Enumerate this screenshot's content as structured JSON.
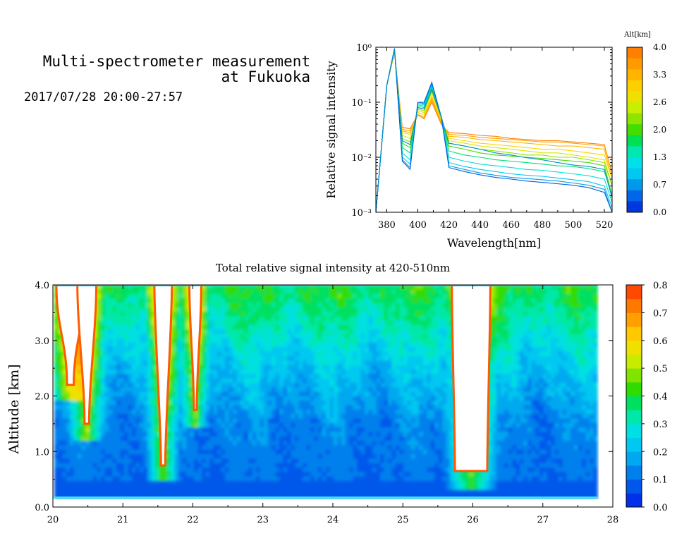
{
  "header": {
    "title_line1": "Multi-spectrometer measurement",
    "title_line2": "at Fukuoka",
    "date_range": "2017/07/28 20:00-27:57"
  },
  "chart_data": [
    {
      "type": "line",
      "xlabel": "Wavelength[nm]",
      "ylabel": "Relative signal intensity",
      "xlim": [
        373,
        525
      ],
      "ylim": [
        0.001,
        1
      ],
      "yscale": "log",
      "x_ticks": [
        380,
        400,
        420,
        440,
        460,
        480,
        500,
        520
      ],
      "y_ticks": [
        "10⁻³",
        "10⁻²",
        "10⁻¹",
        "10⁰"
      ],
      "x": [
        373,
        380,
        385,
        390,
        395,
        400,
        404,
        409,
        415,
        420,
        430,
        440,
        450,
        460,
        470,
        480,
        490,
        500,
        510,
        520,
        525
      ],
      "colorbar": {
        "title": "Alt[km]",
        "ticks": [
          "4.0",
          "3.3",
          "2.6",
          "2.0",
          "1.3",
          "0.7",
          "0.0"
        ],
        "colors": [
          "#ff7f00",
          "#ff9a00",
          "#ffb400",
          "#ffd000",
          "#f0e000",
          "#c8ee00",
          "#8ee600",
          "#44dd00",
          "#00e050",
          "#00e8b0",
          "#00e0e8",
          "#00c8f0",
          "#0098ea",
          "#0068e8",
          "#0038e0"
        ]
      },
      "series": [
        {
          "alt": 4.0,
          "color": "#ff7f00",
          "values": [
            0.001,
            0.2,
            0.8,
            0.035,
            0.033,
            0.06,
            0.05,
            0.1,
            0.04,
            0.028,
            0.027,
            0.025,
            0.024,
            0.022,
            0.021,
            0.02,
            0.02,
            0.019,
            0.018,
            0.017,
            0.005
          ]
        },
        {
          "alt": 3.6,
          "color": "#ffa000",
          "values": [
            0.001,
            0.2,
            0.8,
            0.032,
            0.03,
            0.058,
            0.052,
            0.11,
            0.042,
            0.026,
            0.025,
            0.023,
            0.022,
            0.021,
            0.02,
            0.019,
            0.019,
            0.018,
            0.017,
            0.016,
            0.005
          ]
        },
        {
          "alt": 3.3,
          "color": "#ffb800",
          "values": [
            0.001,
            0.2,
            0.82,
            0.03,
            0.028,
            0.06,
            0.055,
            0.12,
            0.045,
            0.024,
            0.023,
            0.021,
            0.02,
            0.019,
            0.018,
            0.017,
            0.016,
            0.016,
            0.015,
            0.014,
            0.004
          ]
        },
        {
          "alt": 2.9,
          "color": "#ffd200",
          "values": [
            0.001,
            0.2,
            0.85,
            0.028,
            0.026,
            0.065,
            0.06,
            0.13,
            0.048,
            0.022,
            0.02,
            0.018,
            0.017,
            0.016,
            0.015,
            0.014,
            0.014,
            0.013,
            0.012,
            0.011,
            0.004
          ]
        },
        {
          "alt": 2.6,
          "color": "#d8e800",
          "values": [
            0.001,
            0.2,
            0.85,
            0.025,
            0.022,
            0.07,
            0.065,
            0.15,
            0.05,
            0.02,
            0.018,
            0.016,
            0.015,
            0.014,
            0.013,
            0.012,
            0.012,
            0.011,
            0.01,
            0.009,
            0.003
          ]
        },
        {
          "alt": 2.3,
          "color": "#90e400",
          "values": [
            0.001,
            0.2,
            0.88,
            0.022,
            0.019,
            0.075,
            0.07,
            0.16,
            0.052,
            0.018,
            0.016,
            0.014,
            0.013,
            0.012,
            0.011,
            0.011,
            0.01,
            0.01,
            0.009,
            0.008,
            0.003
          ]
        },
        {
          "alt": 2.0,
          "color": "#40dc00",
          "values": [
            0.001,
            0.2,
            0.9,
            0.018,
            0.015,
            0.08,
            0.075,
            0.18,
            0.055,
            0.016,
            0.014,
            0.012,
            0.011,
            0.0105,
            0.01,
            0.0095,
            0.009,
            0.0085,
            0.008,
            0.007,
            0.002
          ]
        },
        {
          "alt": 1.6,
          "color": "#00e070",
          "values": [
            0.001,
            0.2,
            0.9,
            0.015,
            0.012,
            0.085,
            0.08,
            0.19,
            0.055,
            0.013,
            0.011,
            0.01,
            0.009,
            0.0085,
            0.008,
            0.0075,
            0.007,
            0.0068,
            0.0062,
            0.0055,
            0.002
          ]
        },
        {
          "alt": 1.3,
          "color": "#00e0d0",
          "values": [
            0.001,
            0.2,
            0.92,
            0.012,
            0.009,
            0.09,
            0.085,
            0.2,
            0.055,
            0.01,
            0.0085,
            0.0075,
            0.007,
            0.0065,
            0.006,
            0.0058,
            0.0054,
            0.005,
            0.0046,
            0.004,
            0.0015
          ]
        },
        {
          "alt": 1.0,
          "color": "#00c8f0",
          "values": [
            0.001,
            0.2,
            0.93,
            0.01,
            0.0075,
            0.095,
            0.09,
            0.21,
            0.055,
            0.008,
            0.0068,
            0.006,
            0.0055,
            0.005,
            0.0047,
            0.0045,
            0.0042,
            0.0039,
            0.0036,
            0.003,
            0.0012
          ]
        },
        {
          "alt": 0.7,
          "color": "#0098ea",
          "values": [
            0.001,
            0.2,
            0.95,
            0.009,
            0.0065,
            0.1,
            0.095,
            0.22,
            0.055,
            0.007,
            0.006,
            0.0052,
            0.0047,
            0.0043,
            0.0041,
            0.0039,
            0.0037,
            0.0034,
            0.0031,
            0.0026,
            0.001
          ]
        },
        {
          "alt": 0.3,
          "color": "#0060d8",
          "values": [
            0.001,
            0.2,
            0.95,
            0.0085,
            0.006,
            0.1,
            0.1,
            0.23,
            0.055,
            0.0065,
            0.0055,
            0.0048,
            0.0043,
            0.004,
            0.0037,
            0.0035,
            0.0033,
            0.0031,
            0.0028,
            0.0023,
            0.001
          ]
        },
        {
          "alt": 1.8,
          "color": "#008fd0",
          "values": [
            0.001,
            0.2,
            0.9,
            0.02,
            0.017,
            0.08,
            0.075,
            0.17,
            0.055,
            0.018,
            0.016,
            0.014,
            0.012,
            0.011,
            0.0098,
            0.009,
            0.008,
            0.0072,
            0.0068,
            0.006,
            0.0018
          ]
        }
      ]
    },
    {
      "type": "heatmap",
      "title": "Total relative signal intensity at 420-510nm",
      "ylabel": "Altitude [km]",
      "xlim": [
        20,
        28
      ],
      "ylim": [
        0,
        4
      ],
      "x_ticks": [
        "20",
        "21",
        "22",
        "23",
        "24",
        "25",
        "26",
        "27",
        "28"
      ],
      "y_ticks": [
        "0.0",
        "1.0",
        "2.0",
        "3.0",
        "4.0"
      ],
      "data_x_range": [
        20.02,
        27.78
      ],
      "data_y_range": [
        0.15,
        4.0
      ],
      "colorbar": {
        "ticks": [
          "0.0",
          "0.1",
          "0.2",
          "0.3",
          "0.4",
          "0.5",
          "0.6",
          "0.7",
          "0.8"
        ],
        "range": [
          0,
          0.8
        ],
        "colors": [
          "#0030e8",
          "#0058ea",
          "#0080ec",
          "#00a8f0",
          "#00c8f0",
          "#00e0e0",
          "#00e8a8",
          "#00e060",
          "#30dc00",
          "#80e400",
          "#c8ec00",
          "#f0e000",
          "#ffc800",
          "#ffa000",
          "#ff7800",
          "#ff4800"
        ]
      },
      "saturated_regions": [
        {
          "x": [
            20.05,
            20.45
          ],
          "bottom_alt": 2.2
        },
        {
          "x": [
            20.35,
            20.62
          ],
          "bottom_alt": 1.5
        },
        {
          "x": [
            21.45,
            21.7
          ],
          "bottom_alt": 0.75
        },
        {
          "x": [
            21.95,
            22.12
          ],
          "bottom_alt": 1.75
        },
        {
          "x": [
            25.7,
            26.25
          ],
          "bottom_alt": 0.65
        }
      ]
    }
  ]
}
